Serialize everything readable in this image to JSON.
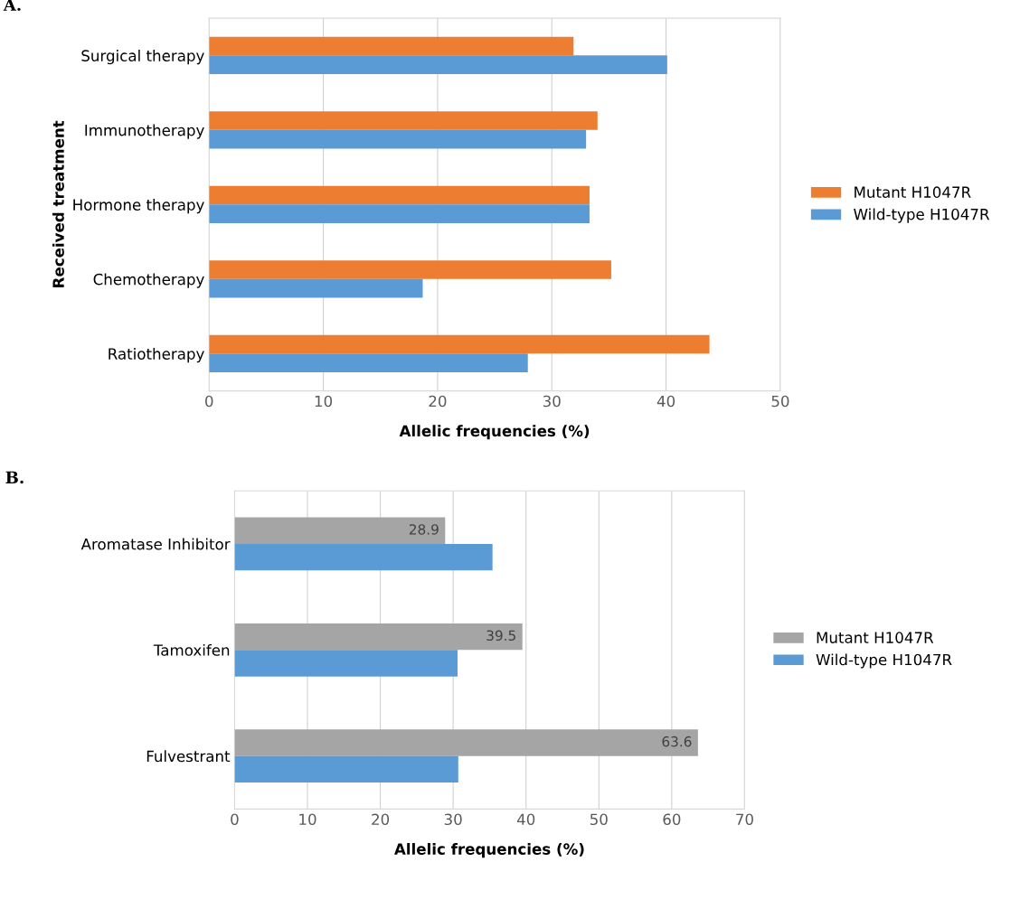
{
  "chart_data": [
    {
      "type": "bar",
      "orientation": "horizontal",
      "title": "A.",
      "xlabel": "Allelic frequencies (%)",
      "ylabel": "Received treatment",
      "categories": [
        "Surgical therapy",
        "Immunotherapy",
        "Hormone therapy",
        "Chemotherapy",
        "Ratiotherapy"
      ],
      "series": [
        {
          "name": "Mutant H1047R",
          "color": "#ed7d31",
          "values": [
            31.9,
            34.0,
            33.3,
            35.2,
            43.8
          ]
        },
        {
          "name": "Wild-type H1047R",
          "color": "#5b9bd5",
          "values": [
            40.1,
            33.0,
            33.3,
            18.7,
            27.9
          ]
        }
      ],
      "xlim": [
        0,
        50
      ],
      "xticks": [
        0,
        10,
        20,
        30,
        40,
        50
      ],
      "grid": "x",
      "legend": "right"
    },
    {
      "type": "bar",
      "orientation": "horizontal",
      "title": "B.",
      "xlabel": "Allelic frequencies (%)",
      "categories": [
        "Aromatase Inhibitor",
        "Tamoxifen",
        "Fulvestrant"
      ],
      "series": [
        {
          "name": "Mutant H1047R",
          "color": "#a5a5a5",
          "values": [
            28.9,
            39.5,
            63.6
          ],
          "value_labels": [
            "28.9",
            "39.5",
            "63.6"
          ]
        },
        {
          "name": "Wild-type H1047R",
          "color": "#5b9bd5",
          "values": [
            35.4,
            30.6,
            30.7
          ]
        }
      ],
      "xlim": [
        0,
        70
      ],
      "xticks": [
        0,
        10,
        20,
        30,
        40,
        50,
        60,
        70
      ],
      "grid": "x",
      "legend": "right"
    }
  ]
}
